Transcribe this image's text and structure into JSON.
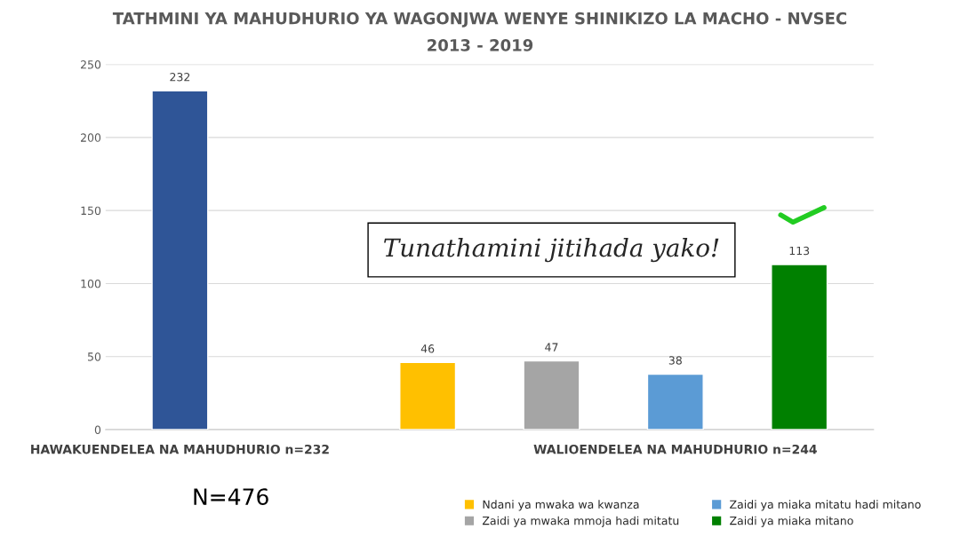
{
  "chart_data": {
    "type": "bar",
    "title": "TATHMINI YA MAHUDHURIO YA WAGONJWA WENYE SHINIKIZO LA MACHO - NVSEC",
    "subtitle": "2013 - 2019",
    "categories": [
      "HAWAKUENDELEA NA MAHUDHURIO n=232",
      null,
      null,
      null,
      "WALIOENDELEA NA MAHUDHURIO n=244",
      null
    ],
    "series": [
      {
        "color": "#2f5597",
        "values": [
          232,
          null,
          null,
          null,
          null,
          null
        ]
      },
      {
        "name": "Ndani ya mwaka wa kwanza",
        "color": "#ffc000",
        "values": [
          null,
          null,
          46,
          null,
          null,
          null
        ]
      },
      {
        "name": "Zaidi ya mwaka mmoja hadi mitatu",
        "color": "#a5a5a5",
        "values": [
          null,
          null,
          null,
          47,
          null,
          null
        ]
      },
      {
        "name": "Zaidi ya miaka mitatu hadi mitano",
        "color": "#5b9bd5",
        "values": [
          null,
          null,
          null,
          null,
          38,
          null
        ]
      },
      {
        "name": "Zaidi ya miaka mitano",
        "color": "#008000",
        "values": [
          null,
          null,
          null,
          null,
          null,
          113
        ]
      }
    ],
    "ylim": [
      0,
      250
    ],
    "yticks": [
      0,
      50,
      100,
      150,
      200,
      250
    ],
    "grid": "y",
    "data_labels": true,
    "legend": "bottom right",
    "annotations": [
      "Tunathamini jitihada yako!",
      "N=476"
    ]
  }
}
